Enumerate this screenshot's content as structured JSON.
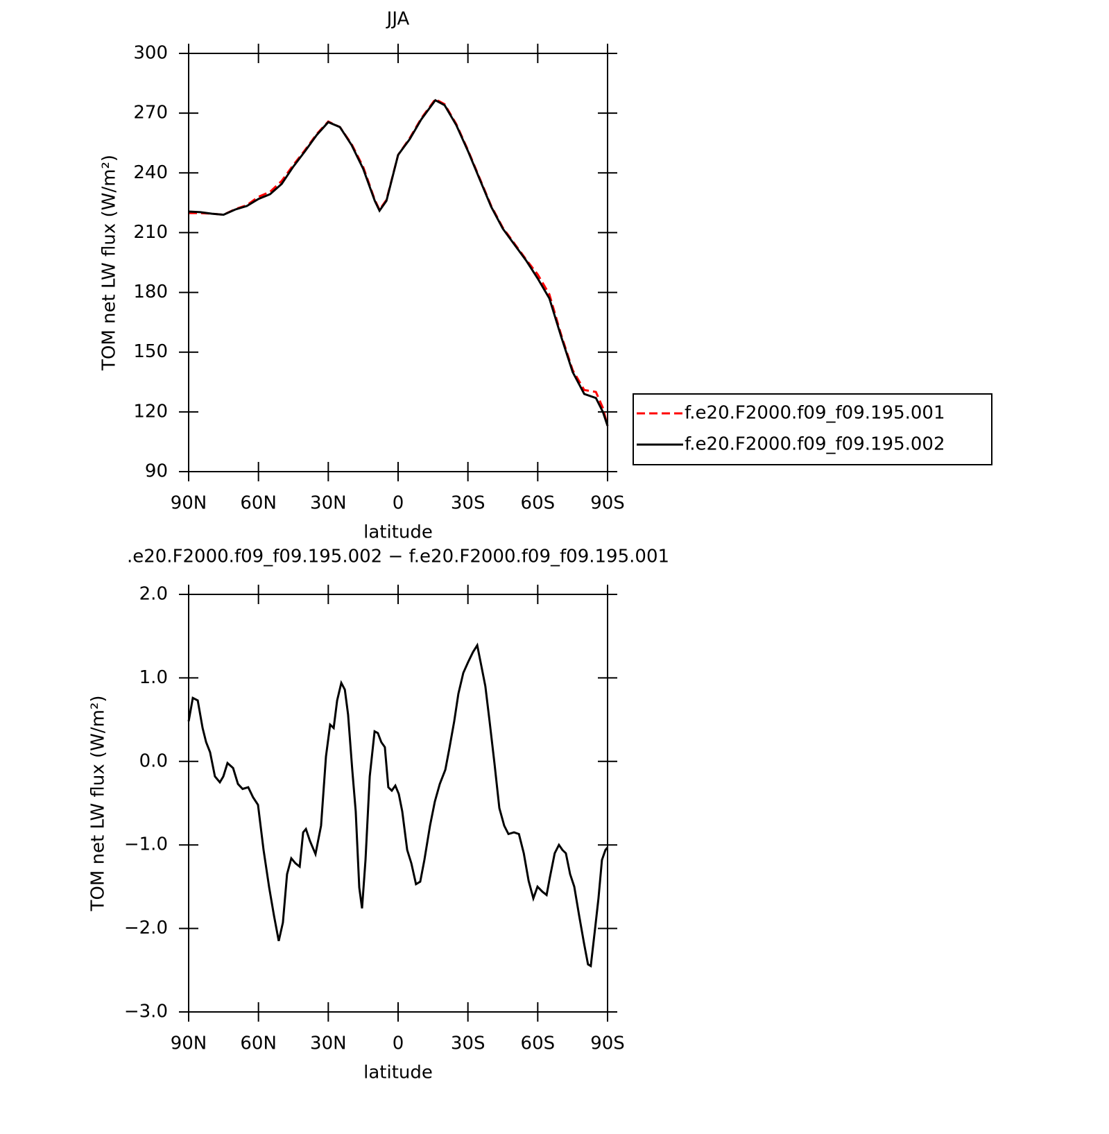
{
  "chart_data": [
    {
      "type": "line",
      "title": "JJA",
      "xlabel": "latitude",
      "ylabel": "TOM net LW flux (W/m²)",
      "x": [
        90,
        85,
        80,
        75,
        70,
        65,
        60,
        55,
        50,
        45,
        40,
        35,
        30,
        25,
        20,
        15,
        10,
        8,
        5,
        0,
        -5,
        -10,
        -16,
        -20,
        -25,
        -30,
        -35,
        -40,
        -45,
        -50,
        -55,
        -60,
        -65,
        -70,
        -75,
        -80,
        -85,
        -88,
        -90
      ],
      "series": [
        {
          "name": "f.e20.F2000.f09_f09.195.001",
          "color": "#ff0000",
          "dashed": true,
          "values": [
            219.8,
            219.8,
            219.5,
            219,
            221.8,
            223.8,
            228,
            230.5,
            236,
            244,
            251.5,
            259.5,
            265.8,
            263,
            254.5,
            243,
            226.5,
            221.5,
            226.5,
            249,
            257.5,
            267.5,
            277,
            274.5,
            264.5,
            251.5,
            237.5,
            223.5,
            212.5,
            204.5,
            196.5,
            189,
            179,
            159,
            141,
            131,
            130,
            122,
            113
          ]
        },
        {
          "name": "f.e20.F2000.f09_f09.195.002",
          "color": "#000000",
          "dashed": false,
          "values": [
            220.6,
            220.3,
            219.5,
            219,
            221.6,
            223.4,
            226.9,
            229.3,
            234.5,
            243.2,
            250.9,
            259,
            265.5,
            263,
            254,
            242,
            226,
            221,
            226,
            249,
            257,
            267,
            276.5,
            274,
            264,
            251,
            237,
            223,
            212,
            204,
            196,
            187,
            177,
            158,
            140,
            129,
            127,
            120,
            113
          ]
        }
      ],
      "xlim": [
        90,
        -90
      ],
      "xticks": [
        {
          "value": 90,
          "label": "90N"
        },
        {
          "value": 60,
          "label": "60N"
        },
        {
          "value": 30,
          "label": "30N"
        },
        0,
        {
          "value": -30,
          "label": "30S"
        },
        {
          "value": -60,
          "label": "60S"
        },
        {
          "value": -90,
          "label": "90S"
        }
      ],
      "ylim": [
        90,
        300
      ],
      "yticks": [
        90,
        120,
        150,
        180,
        210,
        240,
        270,
        300
      ],
      "legend": "right"
    },
    {
      "type": "line",
      "title": ".e20.F2000.f09_f09.195.002 − f.e20.F2000.f09_f09.195.001",
      "xlabel": "latitude",
      "ylabel": "TOM net LW flux (W/m²)",
      "x": [
        90,
        88.2,
        86.1,
        84,
        82.5,
        80.8,
        78.7,
        76.6,
        75.1,
        73.3,
        70.9,
        68.8,
        66.8,
        64.4,
        62.3,
        60.2,
        57.8,
        55.4,
        53.3,
        51.3,
        49.5,
        47.7,
        45.9,
        44.1,
        42.3,
        40.8,
        39.6,
        37.9,
        35.5,
        33.1,
        31,
        29.2,
        27.7,
        26.2,
        24.4,
        22.9,
        21.5,
        19.7,
        18.2,
        16.7,
        15.5,
        14,
        12.2,
        10.1,
        8.7,
        7.2,
        5.7,
        4.2,
        2.7,
        1.2,
        -0.3,
        -1.8,
        -3.9,
        -5.7,
        -7.7,
        -9.5,
        -11.3,
        -13.7,
        -15.8,
        -17.9,
        -20.3,
        -22,
        -24.1,
        -25.9,
        -28,
        -30.1,
        -32.2,
        -34,
        -35.8,
        -37.5,
        -39.3,
        -41.4,
        -43.5,
        -45.6,
        -47.4,
        -49.8,
        -51.9,
        -54,
        -56.1,
        -58.1,
        -59.9,
        -62,
        -63.8,
        -65.2,
        -67.3,
        -69.1,
        -70.6,
        -72.1,
        -73.9,
        -75.7,
        -77.8,
        -79.9,
        -81.6,
        -82.8,
        -84.6,
        -86.1,
        -87.6,
        -89.1,
        -90
      ],
      "values": [
        0.48,
        0.76,
        0.73,
        0.4,
        0.23,
        0.11,
        -0.18,
        -0.25,
        -0.18,
        -0.02,
        -0.08,
        -0.27,
        -0.33,
        -0.31,
        -0.43,
        -0.52,
        -1.06,
        -1.51,
        -1.85,
        -2.15,
        -1.93,
        -1.35,
        -1.16,
        -1.22,
        -1.26,
        -0.85,
        -0.81,
        -0.95,
        -1.11,
        -0.77,
        0.06,
        0.44,
        0.4,
        0.73,
        0.94,
        0.86,
        0.56,
        -0.1,
        -0.6,
        -1.51,
        -1.76,
        -1.18,
        -0.18,
        0.36,
        0.34,
        0.23,
        0.17,
        -0.31,
        -0.35,
        -0.29,
        -0.39,
        -0.6,
        -1.06,
        -1.22,
        -1.47,
        -1.44,
        -1.18,
        -0.77,
        -0.48,
        -0.27,
        -0.1,
        0.15,
        0.48,
        0.81,
        1.06,
        1.19,
        1.31,
        1.39,
        1.14,
        0.9,
        0.48,
        -0.02,
        -0.56,
        -0.77,
        -0.87,
        -0.85,
        -0.87,
        -1.1,
        -1.43,
        -1.64,
        -1.5,
        -1.56,
        -1.6,
        -1.39,
        -1.1,
        -1,
        -1.06,
        -1.1,
        -1.35,
        -1.5,
        -1.85,
        -2.18,
        -2.43,
        -2.45,
        -2.01,
        -1.64,
        -1.18,
        -1.06,
        -1.03
      ],
      "color": "#000000",
      "xlim": [
        90,
        -90
      ],
      "xticks": [
        {
          "value": 90,
          "label": "90N"
        },
        {
          "value": 60,
          "label": "60N"
        },
        {
          "value": 30,
          "label": "30N"
        },
        0,
        {
          "value": -30,
          "label": "30S"
        },
        {
          "value": -60,
          "label": "60S"
        },
        {
          "value": -90,
          "label": "90S"
        }
      ],
      "ylim": [
        -3,
        2
      ],
      "yticks": [
        {
          "value": -3,
          "label": "−3.0"
        },
        {
          "value": -2,
          "label": "−2.0"
        },
        {
          "value": -1,
          "label": "−1.0"
        },
        {
          "value": 0,
          "label": "0.0"
        },
        {
          "value": 1,
          "label": "1.0"
        },
        {
          "value": 2,
          "label": "2.0"
        }
      ]
    }
  ]
}
